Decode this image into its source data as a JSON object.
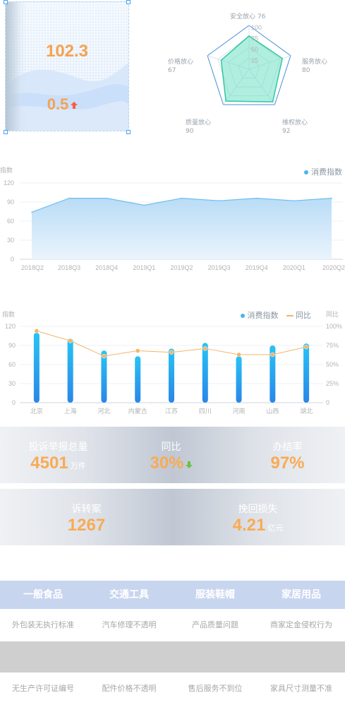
{
  "score_panel": {
    "main_value": "102.3",
    "delta_value": "0.5",
    "delta_icon": "arrow-up-icon",
    "delta_color": "#ff5a3c"
  },
  "radar": {
    "ticks": [
      "100",
      "75",
      "50",
      "25"
    ],
    "axes": [
      {
        "name": "安全放心",
        "value": 76
      },
      {
        "name": "服务放心",
        "value": 80
      },
      {
        "name": "维权放心",
        "value": 92
      },
      {
        "name": "质量放心",
        "value": 90
      },
      {
        "name": "价格放心",
        "value": 67
      }
    ]
  },
  "area_chart": {
    "ylabel": "指数",
    "legend": "消费指数",
    "yticks": [
      "0",
      "30",
      "60",
      "90",
      "120"
    ],
    "categories": [
      "2018Q2",
      "2018Q3",
      "2018Q4",
      "2019Q1",
      "2019Q2",
      "2019Q3",
      "2019Q4",
      "2020Q1",
      "2020Q2"
    ]
  },
  "bar_line_chart": {
    "ylabel_left": "指数",
    "ylabel_right": "同比",
    "legend_bar": "消费指数",
    "legend_line": "同比",
    "yticks_left": [
      "0",
      "30",
      "60",
      "90",
      "120"
    ],
    "yticks_right": [
      "0",
      "25%",
      "50%",
      "75%",
      "100%"
    ],
    "categories": [
      "北京",
      "上海",
      "河北",
      "内蒙古",
      "江苏",
      "四川",
      "河南",
      "山西",
      "湖北"
    ]
  },
  "chart_data": [
    {
      "type": "area",
      "ylabel": "指数",
      "series": [
        {
          "name": "消费指数",
          "values": [
            74,
            96,
            96,
            85,
            96,
            92,
            96,
            92,
            96
          ]
        }
      ],
      "categories": [
        "2018Q2",
        "2018Q3",
        "2018Q4",
        "2019Q1",
        "2019Q2",
        "2019Q3",
        "2019Q4",
        "2020Q1",
        "2020Q2"
      ],
      "ylim": [
        0,
        120
      ],
      "grid": true,
      "legend": "top-right"
    },
    {
      "type": "bar",
      "ylabel": "指数",
      "categories": [
        "北京",
        "上海",
        "河北",
        "内蒙古",
        "江苏",
        "四川",
        "河南",
        "山西",
        "湖北"
      ],
      "series": [
        {
          "name": "消费指数",
          "values": [
            110,
            101,
            82,
            73,
            85,
            94,
            73,
            90,
            93
          ]
        },
        {
          "name": "同比",
          "type": "line",
          "values": [
            94,
            81,
            61,
            68,
            66,
            71,
            63,
            63,
            73
          ]
        }
      ],
      "ylim": [
        0,
        120
      ],
      "ylim_right": [
        0,
        100
      ],
      "legend": "top-right"
    }
  ],
  "stats_row1": [
    {
      "label": "投诉举报总量",
      "value": "4501",
      "unit": "万件"
    },
    {
      "label": "同比",
      "value": "30%",
      "icon": "arrow-down-icon",
      "icon_color": "#6cc04a"
    },
    {
      "label": "办结率",
      "value": "97%"
    }
  ],
  "stats_row2": [
    {
      "label": "诉转案",
      "value": "1267"
    },
    {
      "label": "挽回损失",
      "value": "4.21",
      "unit": "亿元"
    }
  ],
  "categories_table": {
    "headers": [
      "一般食品",
      "交通工具",
      "服装鞋帽",
      "家居用品"
    ],
    "row1": [
      "外包装无执行标准",
      "汽车修理不透明",
      "产品质量问题",
      "商家定金侵权行为"
    ],
    "row2": [
      "无生产许可证编号",
      "配件价格不透明",
      "售后服务不到位",
      "家具尺寸测量不准"
    ]
  },
  "colors": {
    "accent_orange": "#f5a24f",
    "chart_blue": "#4ab4f0",
    "radar_fill": "#6fe0c6",
    "line_orange": "#f4b46a"
  }
}
